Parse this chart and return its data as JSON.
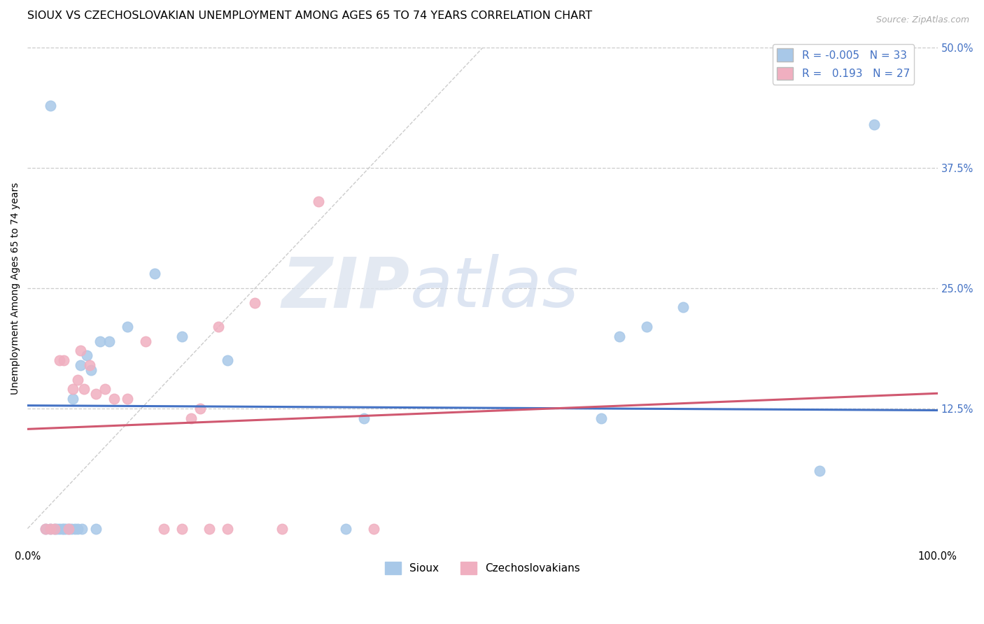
{
  "title": "SIOUX VS CZECHOSLOVAKIAN UNEMPLOYMENT AMONG AGES 65 TO 74 YEARS CORRELATION CHART",
  "source": "Source: ZipAtlas.com",
  "ylabel": "Unemployment Among Ages 65 to 74 years",
  "xlim": [
    0.0,
    1.0
  ],
  "ylim": [
    -0.02,
    0.52
  ],
  "xticks": [
    0.0,
    1.0
  ],
  "xticklabels": [
    "0.0%",
    "100.0%"
  ],
  "yticks": [
    0.125,
    0.25,
    0.375,
    0.5
  ],
  "yticklabels": [
    "12.5%",
    "25.0%",
    "37.5%",
    "50.0%"
  ],
  "r_sioux": -0.005,
  "n_sioux": 33,
  "r_czech": 0.193,
  "n_czech": 27,
  "sioux_scatter_color": "#a8c8e8",
  "czech_scatter_color": "#f0afc0",
  "sioux_line_color": "#4472c4",
  "czech_line_color": "#d05870",
  "grid_color": "#cccccc",
  "background_color": "#ffffff",
  "title_fontsize": 11.5,
  "label_fontsize": 10,
  "tick_fontsize": 10.5,
  "source_fontsize": 9,
  "marker_size": 110,
  "sioux_x": [
    0.02,
    0.025,
    0.03,
    0.032,
    0.035,
    0.038,
    0.04,
    0.042,
    0.045,
    0.048,
    0.05,
    0.052,
    0.055,
    0.058,
    0.06,
    0.065,
    0.07,
    0.075,
    0.08,
    0.09,
    0.11,
    0.14,
    0.17,
    0.22,
    0.35,
    0.37,
    0.63,
    0.65,
    0.68,
    0.72,
    0.87,
    0.93,
    0.025
  ],
  "sioux_y": [
    0.0,
    0.0,
    0.0,
    0.0,
    0.0,
    0.0,
    0.0,
    0.0,
    0.0,
    0.0,
    0.135,
    0.0,
    0.0,
    0.17,
    0.0,
    0.18,
    0.165,
    0.0,
    0.195,
    0.195,
    0.21,
    0.265,
    0.2,
    0.175,
    0.0,
    0.115,
    0.115,
    0.2,
    0.21,
    0.23,
    0.06,
    0.42,
    0.44
  ],
  "czech_x": [
    0.02,
    0.025,
    0.03,
    0.035,
    0.04,
    0.045,
    0.05,
    0.055,
    0.058,
    0.062,
    0.068,
    0.075,
    0.085,
    0.095,
    0.11,
    0.13,
    0.15,
    0.17,
    0.2,
    0.22,
    0.25,
    0.28,
    0.32,
    0.38,
    0.18,
    0.19,
    0.21
  ],
  "czech_y": [
    0.0,
    0.0,
    0.0,
    0.175,
    0.175,
    0.0,
    0.145,
    0.155,
    0.185,
    0.145,
    0.17,
    0.14,
    0.145,
    0.135,
    0.135,
    0.195,
    0.0,
    0.0,
    0.0,
    0.0,
    0.235,
    0.0,
    0.34,
    0.0,
    0.115,
    0.125,
    0.21
  ]
}
